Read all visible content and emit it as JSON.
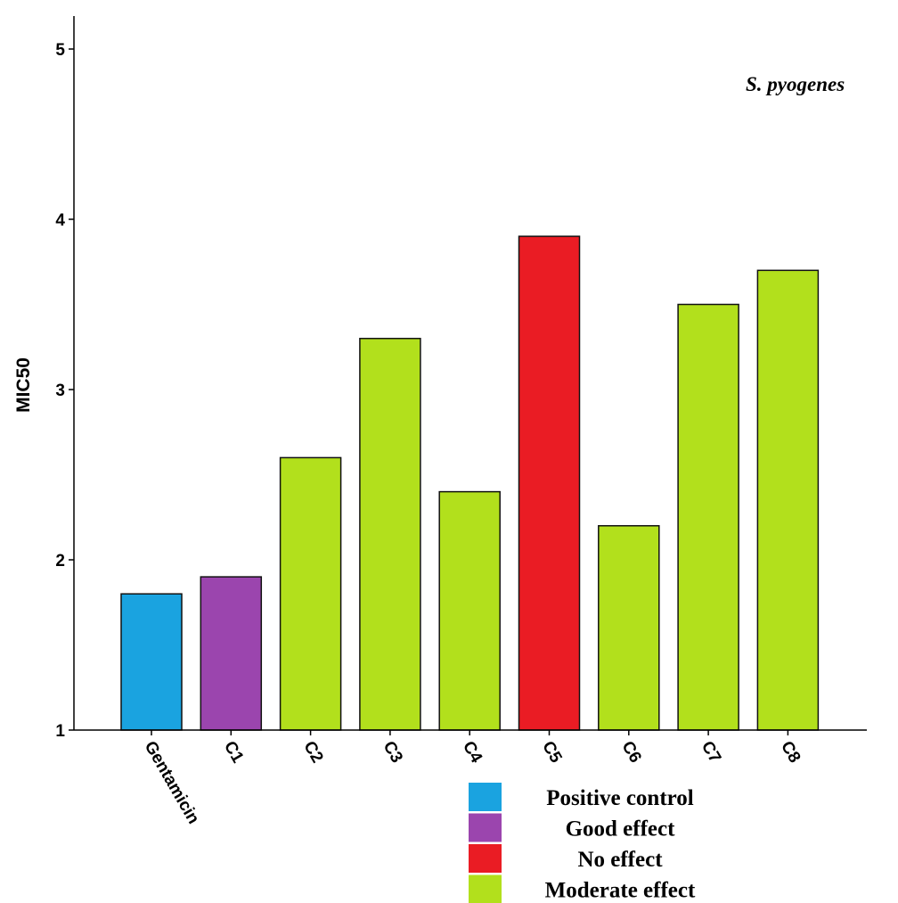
{
  "chart_data": {
    "type": "bar",
    "ylabel": "MIC50",
    "xlabel": "",
    "ylim": [
      1,
      5.2
    ],
    "yticks": [
      1,
      2,
      3,
      4,
      5
    ],
    "grid": false,
    "annotation": "S. pyogenes",
    "categories": [
      "Gentamicin",
      "C1",
      "C2",
      "C3",
      "C4",
      "C5",
      "C6",
      "C7",
      "C8"
    ],
    "values": [
      1.8,
      1.9,
      2.6,
      3.3,
      2.4,
      3.9,
      2.2,
      3.5,
      3.7
    ],
    "bar_groups": [
      "Positive control",
      "Good effect",
      "Moderate effect",
      "Moderate effect",
      "Moderate effect",
      "No effect",
      "Moderate effect",
      "Moderate effect",
      "Moderate effect"
    ],
    "legend_position": "bottom-right",
    "legend": [
      {
        "label": "Positive control",
        "color": "#1aa3e0"
      },
      {
        "label": "Good effect",
        "color": "#9b45ae"
      },
      {
        "label": "No effect",
        "color": "#ea1c24"
      },
      {
        "label": "Moderate effect",
        "color": "#b2e01c"
      }
    ]
  }
}
